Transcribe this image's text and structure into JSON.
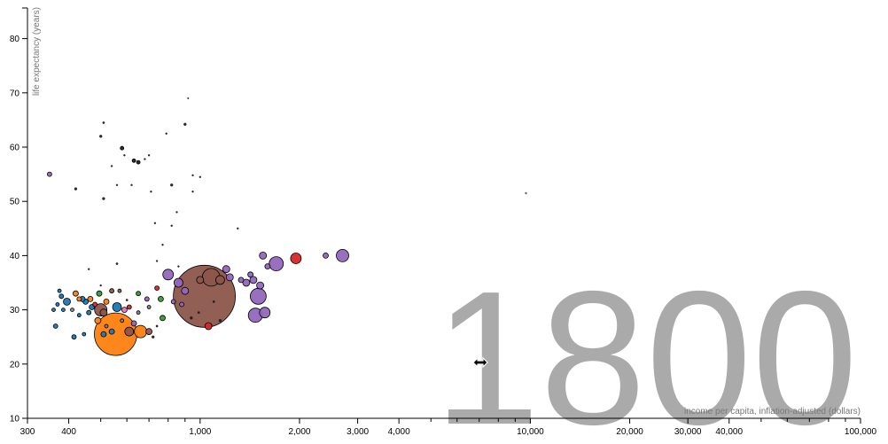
{
  "chart_data": {
    "type": "scatter",
    "year": "1800",
    "xlabel": "income per capita, inflation-adjusted (dollars)",
    "ylabel": "life expectancy (years)",
    "x_scale": "log",
    "xlim": [
      300,
      100000
    ],
    "ylim": [
      10,
      85
    ],
    "x_ticks": [
      300,
      400,
      1000,
      2000,
      3000,
      4000,
      10000,
      20000,
      30000,
      40000,
      100000
    ],
    "x_tick_labels": [
      "300",
      "400",
      "1,000",
      "2,000",
      "3,000",
      "4,000",
      "10,000",
      "20,000",
      "30,000",
      "40,000",
      "100,000"
    ],
    "x_minor_ticks": [
      500,
      600,
      700,
      800,
      900,
      5000,
      6000,
      7000,
      8000,
      9000,
      50000,
      60000,
      70000,
      80000,
      90000
    ],
    "y_ticks": [
      10,
      20,
      30,
      40,
      50,
      60,
      70,
      80
    ],
    "y_tick_labels": [
      "10",
      "20",
      "30",
      "40",
      "50",
      "60",
      "70",
      "80"
    ],
    "colors": {
      "blue": "#1f77b4",
      "orange": "#ff7f0e",
      "green": "#2ca02c",
      "red": "#d62728",
      "purple": "#9467bd",
      "brown": "#8c564b",
      "pink": "#e377c2",
      "gray": "#7f7f7f",
      "black": "#222222"
    },
    "points": [
      {
        "x": 1030,
        "y": 32.5,
        "r": 35,
        "color": "brown"
      },
      {
        "x": 555,
        "y": 25.5,
        "r": 24,
        "color": "orange"
      },
      {
        "x": 1000,
        "y": 35.5,
        "r": 4,
        "color": "brown"
      },
      {
        "x": 1080,
        "y": 36,
        "r": 10,
        "color": "brown"
      },
      {
        "x": 1150,
        "y": 35.5,
        "r": 5,
        "color": "brown"
      },
      {
        "x": 510,
        "y": 29.5,
        "r": 4,
        "color": "brown"
      },
      {
        "x": 2700,
        "y": 40,
        "r": 7,
        "color": "purple"
      },
      {
        "x": 1700,
        "y": 38.5,
        "r": 8,
        "color": "purple"
      },
      {
        "x": 1950,
        "y": 39.5,
        "r": 6,
        "color": "red"
      },
      {
        "x": 2400,
        "y": 40,
        "r": 3,
        "color": "purple"
      },
      {
        "x": 1550,
        "y": 40,
        "r": 4,
        "color": "purple"
      },
      {
        "x": 1600,
        "y": 38,
        "r": 3,
        "color": "purple"
      },
      {
        "x": 1500,
        "y": 32.5,
        "r": 9,
        "color": "purple"
      },
      {
        "x": 1470,
        "y": 29,
        "r": 8,
        "color": "purple"
      },
      {
        "x": 1570,
        "y": 29.5,
        "r": 6,
        "color": "purple"
      },
      {
        "x": 1450,
        "y": 35.5,
        "r": 4,
        "color": "purple"
      },
      {
        "x": 1520,
        "y": 34.5,
        "r": 4,
        "color": "purple"
      },
      {
        "x": 1200,
        "y": 37.5,
        "r": 4,
        "color": "purple"
      },
      {
        "x": 1230,
        "y": 36,
        "r": 4,
        "color": "purple"
      },
      {
        "x": 1380,
        "y": 35,
        "r": 4,
        "color": "purple"
      },
      {
        "x": 1420,
        "y": 36.5,
        "r": 3,
        "color": "purple"
      },
      {
        "x": 1330,
        "y": 35.5,
        "r": 3,
        "color": "purple"
      },
      {
        "x": 800,
        "y": 36.5,
        "r": 6,
        "color": "purple"
      },
      {
        "x": 860,
        "y": 35,
        "r": 5,
        "color": "purple"
      },
      {
        "x": 900,
        "y": 33.5,
        "r": 4,
        "color": "purple"
      },
      {
        "x": 1060,
        "y": 27,
        "r": 4,
        "color": "red"
      },
      {
        "x": 770,
        "y": 28.5,
        "r": 3,
        "color": "green"
      },
      {
        "x": 760,
        "y": 32,
        "r": 3,
        "color": "green"
      },
      {
        "x": 740,
        "y": 34,
        "r": 2.5,
        "color": "red"
      },
      {
        "x": 830,
        "y": 31.5,
        "r": 2.5,
        "color": "purple"
      },
      {
        "x": 880,
        "y": 31,
        "r": 2.5,
        "color": "purple"
      },
      {
        "x": 660,
        "y": 26,
        "r": 7,
        "color": "orange"
      },
      {
        "x": 610,
        "y": 26,
        "r": 5,
        "color": "brown"
      },
      {
        "x": 700,
        "y": 26,
        "r": 3.5,
        "color": "brown"
      },
      {
        "x": 630,
        "y": 27.5,
        "r": 3,
        "color": "purple"
      },
      {
        "x": 540,
        "y": 26,
        "r": 3,
        "color": "blue"
      },
      {
        "x": 510,
        "y": 25.5,
        "r": 3,
        "color": "blue"
      },
      {
        "x": 490,
        "y": 28,
        "r": 3.5,
        "color": "orange"
      },
      {
        "x": 500,
        "y": 30,
        "r": 7,
        "color": "brown"
      },
      {
        "x": 560,
        "y": 30.5,
        "r": 5,
        "color": "blue"
      },
      {
        "x": 590,
        "y": 30,
        "r": 3,
        "color": "pink"
      },
      {
        "x": 610,
        "y": 30.5,
        "r": 2.5,
        "color": "red"
      },
      {
        "x": 650,
        "y": 33,
        "r": 2.5,
        "color": "green"
      },
      {
        "x": 690,
        "y": 32,
        "r": 2.5,
        "color": "purple"
      },
      {
        "x": 470,
        "y": 30.5,
        "r": 3,
        "color": "blue"
      },
      {
        "x": 450,
        "y": 31.5,
        "r": 3,
        "color": "blue"
      },
      {
        "x": 465,
        "y": 32,
        "r": 3,
        "color": "orange"
      },
      {
        "x": 440,
        "y": 32,
        "r": 3,
        "color": "blue"
      },
      {
        "x": 430,
        "y": 32,
        "r": 2.5,
        "color": "orange"
      },
      {
        "x": 480,
        "y": 31,
        "r": 2.5,
        "color": "red"
      },
      {
        "x": 495,
        "y": 33,
        "r": 3,
        "color": "green"
      },
      {
        "x": 520,
        "y": 31.5,
        "r": 3,
        "color": "orange"
      },
      {
        "x": 540,
        "y": 33.5,
        "r": 2.5,
        "color": "brown"
      },
      {
        "x": 570,
        "y": 33.5,
        "r": 2,
        "color": "brown"
      },
      {
        "x": 420,
        "y": 33,
        "r": 3,
        "color": "orange"
      },
      {
        "x": 395,
        "y": 31.5,
        "r": 4,
        "color": "blue"
      },
      {
        "x": 380,
        "y": 32.5,
        "r": 2.5,
        "color": "blue"
      },
      {
        "x": 370,
        "y": 31,
        "r": 2,
        "color": "blue"
      },
      {
        "x": 360,
        "y": 30,
        "r": 2,
        "color": "blue"
      },
      {
        "x": 385,
        "y": 30,
        "r": 2,
        "color": "blue"
      },
      {
        "x": 375,
        "y": 33.5,
        "r": 2,
        "color": "blue"
      },
      {
        "x": 430,
        "y": 29,
        "r": 2,
        "color": "blue"
      },
      {
        "x": 410,
        "y": 30,
        "r": 2,
        "color": "gray"
      },
      {
        "x": 460,
        "y": 29.5,
        "r": 2.5,
        "color": "blue"
      },
      {
        "x": 445,
        "y": 25.5,
        "r": 2,
        "color": "blue"
      },
      {
        "x": 415,
        "y": 25,
        "r": 2.5,
        "color": "blue"
      },
      {
        "x": 365,
        "y": 27,
        "r": 2.5,
        "color": "blue"
      },
      {
        "x": 520,
        "y": 27,
        "r": 2,
        "color": "gray"
      },
      {
        "x": 580,
        "y": 28,
        "r": 2,
        "color": "gray"
      },
      {
        "x": 700,
        "y": 30.5,
        "r": 2,
        "color": "gray"
      },
      {
        "x": 650,
        "y": 29.5,
        "r": 2,
        "color": "gray"
      },
      {
        "x": 720,
        "y": 25,
        "r": 1.5,
        "color": "black"
      },
      {
        "x": 350,
        "y": 55,
        "r": 2.5,
        "color": "purple"
      },
      {
        "x": 420,
        "y": 52.3,
        "r": 1.5,
        "color": "black"
      },
      {
        "x": 510,
        "y": 50.5,
        "r": 1.5,
        "color": "black"
      },
      {
        "x": 510,
        "y": 64.5,
        "r": 1.2,
        "color": "black"
      },
      {
        "x": 500,
        "y": 62,
        "r": 1.5,
        "color": "black"
      },
      {
        "x": 580,
        "y": 59.8,
        "r": 2,
        "color": "black"
      },
      {
        "x": 630,
        "y": 57.5,
        "r": 2,
        "color": "black"
      },
      {
        "x": 650,
        "y": 57.2,
        "r": 2,
        "color": "black"
      },
      {
        "x": 590,
        "y": 58.5,
        "r": 1,
        "color": "black"
      },
      {
        "x": 680,
        "y": 57.8,
        "r": 1,
        "color": "black"
      },
      {
        "x": 540,
        "y": 56.5,
        "r": 1,
        "color": "black"
      },
      {
        "x": 700,
        "y": 58.5,
        "r": 1,
        "color": "black"
      },
      {
        "x": 790,
        "y": 62.5,
        "r": 1,
        "color": "black"
      },
      {
        "x": 900,
        "y": 64.2,
        "r": 1.5,
        "color": "black"
      },
      {
        "x": 920,
        "y": 69,
        "r": 0.8,
        "color": "black"
      },
      {
        "x": 820,
        "y": 53,
        "r": 1.5,
        "color": "black"
      },
      {
        "x": 560,
        "y": 53,
        "r": 1,
        "color": "black"
      },
      {
        "x": 620,
        "y": 53,
        "r": 1,
        "color": "black"
      },
      {
        "x": 710,
        "y": 51.8,
        "r": 1,
        "color": "black"
      },
      {
        "x": 950,
        "y": 51.8,
        "r": 1,
        "color": "black"
      },
      {
        "x": 950,
        "y": 54.8,
        "r": 1,
        "color": "black"
      },
      {
        "x": 1000,
        "y": 54.5,
        "r": 1,
        "color": "black"
      },
      {
        "x": 850,
        "y": 48,
        "r": 1,
        "color": "black"
      },
      {
        "x": 730,
        "y": 46,
        "r": 1,
        "color": "black"
      },
      {
        "x": 820,
        "y": 45.5,
        "r": 1,
        "color": "black"
      },
      {
        "x": 1300,
        "y": 45,
        "r": 1,
        "color": "black"
      },
      {
        "x": 770,
        "y": 42,
        "r": 1,
        "color": "black"
      },
      {
        "x": 740,
        "y": 39,
        "r": 1,
        "color": "black"
      },
      {
        "x": 560,
        "y": 38.5,
        "r": 1.2,
        "color": "black"
      },
      {
        "x": 460,
        "y": 37.5,
        "r": 1,
        "color": "black"
      },
      {
        "x": 500,
        "y": 34.5,
        "r": 1,
        "color": "black"
      },
      {
        "x": 860,
        "y": 38,
        "r": 1,
        "color": "black"
      },
      {
        "x": 9700,
        "y": 51.5,
        "r": 1,
        "color": "gray"
      },
      {
        "x": 940,
        "y": 28.5,
        "r": 1.5,
        "color": "black"
      },
      {
        "x": 1150,
        "y": 28,
        "r": 1.5,
        "color": "black"
      },
      {
        "x": 1100,
        "y": 31.5,
        "r": 1.2,
        "color": "black"
      },
      {
        "x": 990,
        "y": 29.5,
        "r": 1.2,
        "color": "black"
      },
      {
        "x": 740,
        "y": 27,
        "r": 1.2,
        "color": "black"
      },
      {
        "x": 600,
        "y": 31.8,
        "r": 1.2,
        "color": "black"
      }
    ]
  }
}
